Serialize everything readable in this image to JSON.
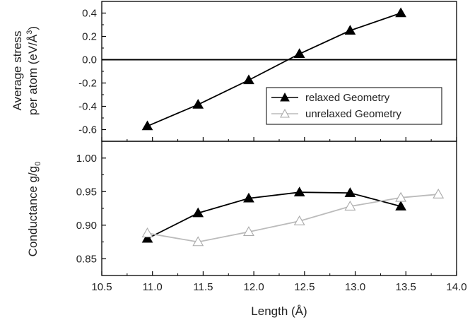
{
  "chart_data": [
    {
      "type": "line",
      "ylabel_line1": "Average stress",
      "ylabel_line2": "per atom (eV/Å",
      "ylabel_sup": "3",
      "ylabel_close": ")",
      "xlim": [
        10.5,
        14.0
      ],
      "ylim": [
        -0.7,
        0.5
      ],
      "yticks": [
        "-0.6",
        "-0.4",
        "-0.2",
        "0.0",
        "0.2",
        "0.4"
      ],
      "yticks_values": [
        -0.6,
        -0.4,
        -0.2,
        0.0,
        0.2,
        0.4
      ],
      "reference_line": 0.0,
      "legend": {
        "position": "lower-right",
        "entries": [
          {
            "label": "relaxed Geometry",
            "color": "#000000",
            "marker": "filled-triangle"
          },
          {
            "label": "unrelaxed Geometry",
            "color": "#bbbbbb",
            "marker": "open-triangle"
          }
        ]
      },
      "series": [
        {
          "name": "relaxed Geometry",
          "color": "#000000",
          "marker": "filled-triangle",
          "x": [
            10.95,
            11.45,
            11.95,
            12.45,
            12.95,
            13.45
          ],
          "y": [
            -0.57,
            -0.385,
            -0.175,
            0.05,
            0.25,
            0.4
          ]
        }
      ]
    },
    {
      "type": "line",
      "ylabel_main": "Conductance g/g",
      "ylabel_sub": "0",
      "xlabel": "Length (Å)",
      "xlim": [
        10.5,
        14.0
      ],
      "ylim": [
        0.825,
        1.025
      ],
      "xticks": [
        "10.5",
        "11.0",
        "11.5",
        "12.0",
        "12.5",
        "13.0",
        "13.5",
        "14.0"
      ],
      "xticks_values": [
        10.5,
        11.0,
        11.5,
        12.0,
        12.5,
        13.0,
        13.5,
        14.0
      ],
      "yticks": [
        "0.85",
        "0.90",
        "0.95",
        "1.00"
      ],
      "yticks_values": [
        0.85,
        0.9,
        0.95,
        1.0
      ],
      "series": [
        {
          "name": "relaxed Geometry",
          "color": "#000000",
          "marker": "filled-triangle",
          "x": [
            10.95,
            11.45,
            11.95,
            12.45,
            12.95,
            13.45
          ],
          "y": [
            0.88,
            0.918,
            0.94,
            0.949,
            0.948,
            0.928
          ]
        },
        {
          "name": "unrelaxed Geometry",
          "color": "#bbbbbb",
          "marker": "open-triangle",
          "x": [
            10.95,
            11.45,
            11.95,
            12.45,
            12.95,
            13.45,
            13.82
          ],
          "y": [
            0.888,
            0.875,
            0.89,
            0.906,
            0.928,
            0.941,
            0.946
          ]
        }
      ]
    }
  ]
}
